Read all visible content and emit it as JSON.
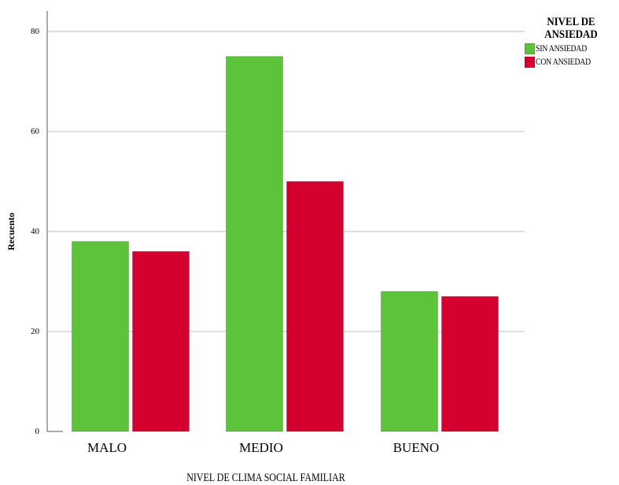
{
  "chart_data": {
    "type": "bar",
    "categories": [
      "MALO",
      "MEDIO",
      "BUENO"
    ],
    "series": [
      {
        "name": "SIN ANSIEDAD",
        "color": "#5dc33a",
        "values": [
          38,
          75,
          28
        ]
      },
      {
        "name": "CON ANSIEDAD",
        "color": "#d4002f",
        "values": [
          36,
          50,
          27
        ]
      }
    ],
    "xlabel": "NIVEL DE CLIMA SOCIAL FAMILIAR",
    "ylabel": "Recuento",
    "ylim": [
      0,
      80
    ],
    "yticks": [
      0,
      20,
      40,
      60,
      80
    ],
    "grid": true,
    "legend": {
      "title": "NIVEL DE ANSIEDAD",
      "placement": "right-top"
    }
  }
}
